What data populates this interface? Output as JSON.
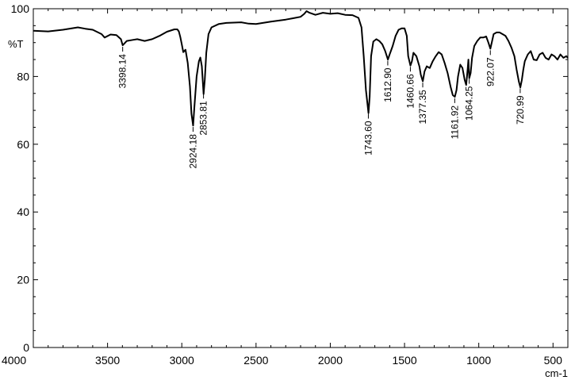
{
  "chart_data": {
    "type": "line",
    "title": "",
    "xlabel": "cm-1",
    "ylabel": "%T",
    "xlim": [
      4000,
      400
    ],
    "ylim": [
      0,
      100
    ],
    "x_reversed": true,
    "grid": false,
    "x_ticks": [
      4000,
      3500,
      3000,
      2500,
      2000,
      1500,
      1000,
      500
    ],
    "y_ticks": [
      0,
      20,
      40,
      60,
      80,
      100
    ],
    "series": [
      {
        "color": "#000000",
        "points": [
          [
            4000,
            93.5
          ],
          [
            3900,
            93.3
          ],
          [
            3800,
            93.8
          ],
          [
            3700,
            94.5
          ],
          [
            3650,
            94.1
          ],
          [
            3600,
            93.8
          ],
          [
            3540,
            92.5
          ],
          [
            3520,
            91.5
          ],
          [
            3480,
            92.4
          ],
          [
            3440,
            92.2
          ],
          [
            3410,
            91
          ],
          [
            3398,
            89.2
          ],
          [
            3370,
            90.5
          ],
          [
            3330,
            90.8
          ],
          [
            3300,
            91
          ],
          [
            3250,
            90.5
          ],
          [
            3200,
            91
          ],
          [
            3150,
            92
          ],
          [
            3100,
            93.2
          ],
          [
            3050,
            93.9
          ],
          [
            3030,
            93.9
          ],
          [
            3020,
            93.3
          ],
          [
            3010,
            91.6
          ],
          [
            3000,
            89.5
          ],
          [
            2990,
            87.2
          ],
          [
            2975,
            87.9
          ],
          [
            2960,
            84
          ],
          [
            2945,
            77
          ],
          [
            2935,
            69
          ],
          [
            2924,
            65.5
          ],
          [
            2915,
            71
          ],
          [
            2900,
            80
          ],
          [
            2885,
            84.5
          ],
          [
            2875,
            85.6
          ],
          [
            2865,
            83
          ],
          [
            2853,
            74.8
          ],
          [
            2845,
            79
          ],
          [
            2835,
            87
          ],
          [
            2820,
            92.5
          ],
          [
            2800,
            94.5
          ],
          [
            2750,
            95.5
          ],
          [
            2700,
            95.8
          ],
          [
            2600,
            96
          ],
          [
            2550,
            95.6
          ],
          [
            2500,
            95.5
          ],
          [
            2400,
            96.2
          ],
          [
            2300,
            96.8
          ],
          [
            2250,
            97.2
          ],
          [
            2200,
            97.6
          ],
          [
            2175,
            98.5
          ],
          [
            2160,
            99.3
          ],
          [
            2140,
            98.8
          ],
          [
            2100,
            98.2
          ],
          [
            2050,
            98.8
          ],
          [
            2000,
            98.5
          ],
          [
            1950,
            98.7
          ],
          [
            1900,
            98.2
          ],
          [
            1850,
            98.1
          ],
          [
            1810,
            97.3
          ],
          [
            1790,
            94.5
          ],
          [
            1775,
            86
          ],
          [
            1760,
            76
          ],
          [
            1743,
            69.2
          ],
          [
            1735,
            74
          ],
          [
            1725,
            86
          ],
          [
            1710,
            90.3
          ],
          [
            1690,
            91
          ],
          [
            1670,
            90.5
          ],
          [
            1650,
            89.5
          ],
          [
            1630,
            87.5
          ],
          [
            1612,
            85
          ],
          [
            1600,
            86.5
          ],
          [
            1580,
            89
          ],
          [
            1560,
            92
          ],
          [
            1540,
            93.8
          ],
          [
            1520,
            94.2
          ],
          [
            1500,
            94.2
          ],
          [
            1485,
            92
          ],
          [
            1475,
            86
          ],
          [
            1460,
            83.2
          ],
          [
            1450,
            84.5
          ],
          [
            1440,
            87
          ],
          [
            1420,
            86
          ],
          [
            1400,
            83
          ],
          [
            1390,
            80.5
          ],
          [
            1377,
            78.6
          ],
          [
            1365,
            81.5
          ],
          [
            1350,
            83
          ],
          [
            1330,
            82.5
          ],
          [
            1310,
            84.5
          ],
          [
            1290,
            86
          ],
          [
            1270,
            87.2
          ],
          [
            1250,
            86.5
          ],
          [
            1230,
            84
          ],
          [
            1210,
            81
          ],
          [
            1190,
            77
          ],
          [
            1175,
            74.5
          ],
          [
            1161,
            74
          ],
          [
            1150,
            76
          ],
          [
            1140,
            80
          ],
          [
            1125,
            83.5
          ],
          [
            1110,
            82.5
          ],
          [
            1095,
            79
          ],
          [
            1085,
            77.5
          ],
          [
            1075,
            82
          ],
          [
            1070,
            85
          ],
          [
            1064,
            79.5
          ],
          [
            1055,
            81
          ],
          [
            1045,
            85.5
          ],
          [
            1030,
            89
          ],
          [
            1010,
            90.5
          ],
          [
            990,
            91.5
          ],
          [
            970,
            91.5
          ],
          [
            950,
            91.8
          ],
          [
            935,
            90
          ],
          [
            922,
            88.2
          ],
          [
            910,
            90.5
          ],
          [
            900,
            92.5
          ],
          [
            880,
            93
          ],
          [
            860,
            93
          ],
          [
            840,
            92.5
          ],
          [
            820,
            92
          ],
          [
            800,
            90.5
          ],
          [
            780,
            88.5
          ],
          [
            760,
            86
          ],
          [
            745,
            82
          ],
          [
            730,
            78.5
          ],
          [
            720,
            76.8
          ],
          [
            710,
            79
          ],
          [
            700,
            82
          ],
          [
            690,
            84.5
          ],
          [
            670,
            86.5
          ],
          [
            650,
            87.5
          ],
          [
            630,
            85
          ],
          [
            610,
            84.8
          ],
          [
            590,
            86.5
          ],
          [
            570,
            87
          ],
          [
            550,
            85.5
          ],
          [
            530,
            85
          ],
          [
            510,
            86.5
          ],
          [
            490,
            86
          ],
          [
            470,
            85
          ],
          [
            450,
            86.5
          ],
          [
            430,
            85.5
          ],
          [
            410,
            86
          ],
          [
            400,
            85.5
          ]
        ]
      }
    ],
    "annotations": [
      {
        "x": 3398.14,
        "label": "3398.14"
      },
      {
        "x": 2924.18,
        "label": "2924.18"
      },
      {
        "x": 2853.81,
        "label": "2853.81"
      },
      {
        "x": 1743.6,
        "label": "1743.60"
      },
      {
        "x": 1612.9,
        "label": "1612.90"
      },
      {
        "x": 1460.66,
        "label": "1460.66"
      },
      {
        "x": 1377.35,
        "label": "1377.35"
      },
      {
        "x": 1161.92,
        "label": "1161.92"
      },
      {
        "x": 1064.25,
        "label": "1064.25"
      },
      {
        "x": 922.07,
        "label": "922.07"
      },
      {
        "x": 720.99,
        "label": "720.99"
      }
    ]
  }
}
